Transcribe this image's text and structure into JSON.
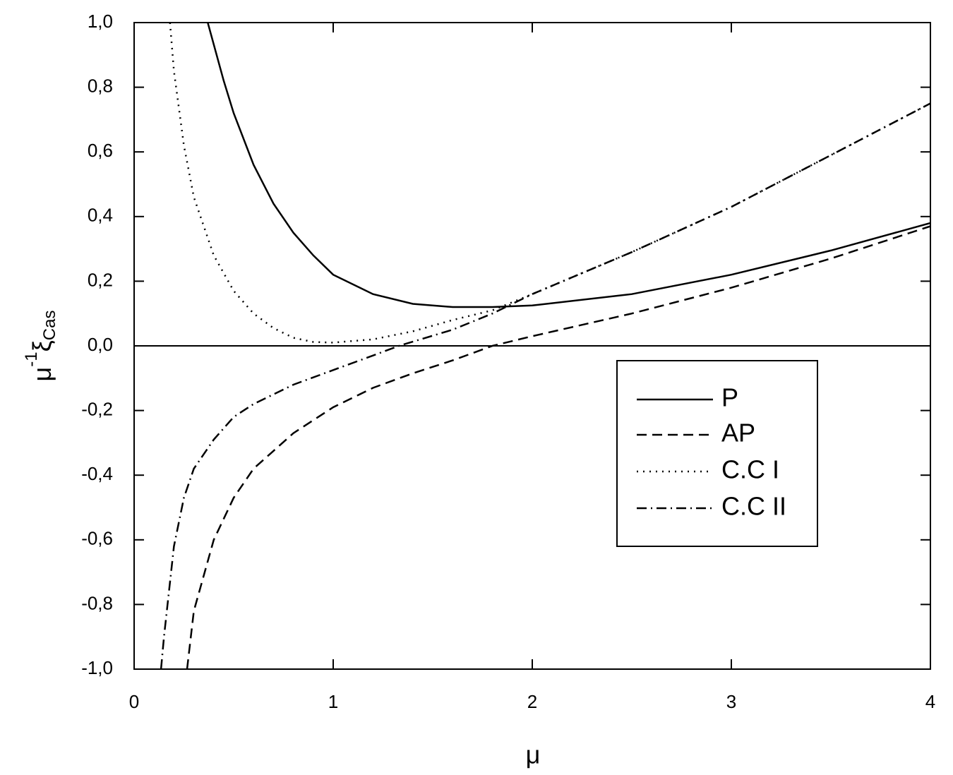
{
  "chart_data": {
    "type": "line",
    "x_label": "μ",
    "y_label": {
      "base": "μ",
      "sup": "-1",
      "main": "ξ",
      "sub": "Cas"
    },
    "xlim": [
      0,
      4
    ],
    "xticks": [
      0,
      1,
      2,
      3,
      4
    ],
    "ylim": [
      -1,
      1
    ],
    "yticks": [
      {
        "value": -1,
        "label": "-1,0"
      },
      {
        "value": -0.8,
        "label": "-0,8"
      },
      {
        "value": -0.6,
        "label": "-0,6"
      },
      {
        "value": -0.4,
        "label": "-0,4"
      },
      {
        "value": -0.2,
        "label": "-0,2"
      },
      {
        "value": 0,
        "label": "0,0"
      },
      {
        "value": 0.2,
        "label": "0,2"
      },
      {
        "value": 0.4,
        "label": "0,4"
      },
      {
        "value": 0.6,
        "label": "0,6"
      },
      {
        "value": 0.8,
        "label": "0,8"
      },
      {
        "value": 1,
        "label": "1,0"
      }
    ],
    "legend_position": "right",
    "series": [
      {
        "name": "P",
        "color": "#000000",
        "dash": "solid",
        "x": [
          0.37,
          0.45,
          0.5,
          0.6,
          0.7,
          0.8,
          0.9,
          1.0,
          1.2,
          1.4,
          1.6,
          1.8,
          2.0,
          2.5,
          3.0,
          3.5,
          4.0
        ],
        "values": [
          1.0,
          0.82,
          0.72,
          0.56,
          0.44,
          0.35,
          0.28,
          0.22,
          0.16,
          0.13,
          0.12,
          0.12,
          0.125,
          0.16,
          0.22,
          0.295,
          0.38
        ]
      },
      {
        "name": "AP",
        "color": "#000000",
        "dash": "dashed",
        "x": [
          0.266,
          0.3,
          0.4,
          0.5,
          0.6,
          0.8,
          1.0,
          1.2,
          1.4,
          1.6,
          1.8,
          2.0,
          2.5,
          3.0,
          3.5,
          4.0
        ],
        "values": [
          -1.0,
          -0.82,
          -0.6,
          -0.47,
          -0.38,
          -0.27,
          -0.19,
          -0.13,
          -0.085,
          -0.045,
          0.0,
          0.03,
          0.1,
          0.18,
          0.27,
          0.37
        ]
      },
      {
        "name": "C.C I",
        "color": "#000000",
        "dash": "dotted",
        "x": [
          0.18,
          0.2,
          0.25,
          0.3,
          0.4,
          0.5,
          0.6,
          0.7,
          0.8,
          0.9,
          1.0,
          1.2,
          1.4,
          1.6,
          1.8,
          2.0,
          2.5,
          3.0,
          3.5,
          4.0
        ],
        "values": [
          1.0,
          0.85,
          0.62,
          0.46,
          0.28,
          0.17,
          0.1,
          0.055,
          0.025,
          0.012,
          0.01,
          0.02,
          0.045,
          0.08,
          0.11,
          0.16,
          0.29,
          0.43,
          0.59,
          0.75
        ]
      },
      {
        "name": "C.C II",
        "color": "#000000",
        "dash": "dashdot",
        "x": [
          0.135,
          0.15,
          0.2,
          0.25,
          0.3,
          0.4,
          0.5,
          0.6,
          0.8,
          1.0,
          1.2,
          1.33,
          1.6,
          1.8,
          2.0,
          2.5,
          3.0,
          3.5,
          4.0
        ],
        "values": [
          -1.0,
          -0.9,
          -0.62,
          -0.47,
          -0.38,
          -0.29,
          -0.22,
          -0.18,
          -0.12,
          -0.075,
          -0.03,
          0.0,
          0.05,
          0.1,
          0.16,
          0.29,
          0.43,
          0.59,
          0.75
        ]
      }
    ]
  }
}
